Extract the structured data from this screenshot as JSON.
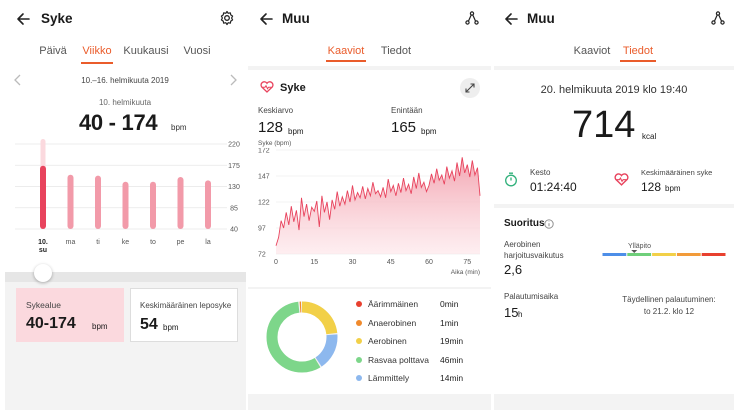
{
  "panel1": {
    "title": "Syke",
    "tabs": [
      "Päivä",
      "Viikko",
      "Kuukausi",
      "Vuosi"
    ],
    "active_tab": "Viikko",
    "date_range": "10.–16. helmikuuta 2019",
    "selected_date": "10. helmikuuta",
    "range_value": "40 - 174",
    "range_unit": "bpm",
    "days": [
      {
        "label": "10.\nsu",
        "low": 40,
        "high": 174,
        "selected": true
      },
      {
        "label": "ma",
        "low": 40,
        "high": 155
      },
      {
        "label": "ti",
        "low": 40,
        "high": 153
      },
      {
        "label": "ke",
        "low": 40,
        "high": 140
      },
      {
        "label": "to",
        "low": 40,
        "high": 140
      },
      {
        "label": "pe",
        "low": 40,
        "high": 150
      },
      {
        "label": "la",
        "low": 40,
        "high": 143
      }
    ],
    "y_ticks": [
      "220",
      "175",
      "130",
      "85",
      "40"
    ],
    "card_range_label": "Sykealue",
    "card_range_value": "40-174",
    "card_range_unit": "bpm",
    "card_rest_label": "Keskimääräinen leposyke",
    "card_rest_value": "54",
    "card_rest_unit": "bpm",
    "colors": {
      "accent": "#ea5c2b",
      "bar": "#f29aa9",
      "bar_selected": "#e8435d",
      "card_pink": "#fbd9de"
    }
  },
  "panel2": {
    "title": "Muu",
    "tabs": [
      "Kaaviot",
      "Tiedot"
    ],
    "active_tab": "Kaaviot",
    "section_title": "Syke",
    "avg_label": "Keskiarvo",
    "avg_value": "128",
    "max_label": "Enintään",
    "max_value": "165",
    "unit": "bpm",
    "chart_ylabel": "Syke (bpm)",
    "chart_xlabel": "Aika (min)",
    "donut_legend": [
      {
        "label": "Äärimmäinen",
        "value": "0min",
        "minutes": 0,
        "color": "#e8402f"
      },
      {
        "label": "Anaerobinen",
        "value": "1min",
        "minutes": 1,
        "color": "#f08a2c"
      },
      {
        "label": "Aerobinen",
        "value": "19min",
        "minutes": 19,
        "color": "#f2d048"
      },
      {
        "label": "Rasvaa polttava",
        "value": "46min",
        "minutes": 46,
        "color": "#7dd68a"
      },
      {
        "label": "Lämmittely",
        "value": "14min",
        "minutes": 14,
        "color": "#8db8ee"
      }
    ]
  },
  "chart_data": {
    "type": "area",
    "title": "Syke",
    "xlabel": "Aika (min)",
    "ylabel": "Syke (bpm)",
    "xlim": [
      0,
      80
    ],
    "ylim": [
      72,
      172
    ],
    "x_ticks": [
      0,
      15,
      30,
      45,
      60,
      75
    ],
    "y_ticks": [
      72,
      97,
      122,
      147,
      172
    ],
    "x": [
      0,
      1,
      2,
      3,
      4,
      5,
      6,
      7,
      8,
      9,
      10,
      11,
      12,
      13,
      14,
      15,
      16,
      17,
      18,
      19,
      20,
      21,
      22,
      23,
      24,
      25,
      26,
      27,
      28,
      29,
      30,
      31,
      32,
      33,
      34,
      35,
      36,
      37,
      38,
      39,
      40,
      41,
      42,
      43,
      44,
      45,
      46,
      47,
      48,
      49,
      50,
      51,
      52,
      53,
      54,
      55,
      56,
      57,
      58,
      59,
      60,
      61,
      62,
      63,
      64,
      65,
      66,
      67,
      68,
      69,
      70,
      71,
      72,
      73,
      74,
      75,
      76,
      77,
      78,
      79,
      80
    ],
    "values": [
      80,
      88,
      104,
      97,
      112,
      100,
      118,
      103,
      114,
      95,
      126,
      108,
      120,
      104,
      117,
      113,
      123,
      98,
      128,
      112,
      122,
      105,
      124,
      115,
      132,
      118,
      127,
      120,
      133,
      122,
      138,
      124,
      131,
      126,
      137,
      125,
      135,
      128,
      141,
      130,
      133,
      127,
      136,
      126,
      144,
      132,
      138,
      128,
      140,
      131,
      145,
      133,
      139,
      130,
      146,
      135,
      150,
      136,
      141,
      132,
      138,
      149,
      140,
      154,
      143,
      148,
      139,
      156,
      145,
      152,
      142,
      160,
      147,
      165,
      150,
      158,
      146,
      162,
      148,
      155,
      128
    ]
  },
  "panel3": {
    "title": "Muu",
    "tabs": [
      "Kaaviot",
      "Tiedot"
    ],
    "active_tab": "Tiedot",
    "datetime": "20. helmikuuta 2019 klo 19:40",
    "kcal_value": "714",
    "kcal_unit": "kcal",
    "duration_label": "Kesto",
    "duration_value": "01:24:40",
    "avg_hr_label": "Keskimääräinen syke",
    "avg_hr_value": "128",
    "avg_hr_unit": "bpm",
    "performance_title": "Suoritus",
    "aerobic_label": "Aerobinen harjoitusvaikutus",
    "aerobic_value": "2,6",
    "gauge_label": "Ylläpito",
    "gauge_fraction": 0.26,
    "gauge_colors": [
      "#4d8ee8",
      "#6fcf7a",
      "#f2d048",
      "#f29b3a",
      "#e8402f"
    ],
    "recovery_label": "Palautumisaika",
    "recovery_value": "15",
    "recovery_unit": "h",
    "full_recovery_label": "Täydellinen palautuminen:",
    "full_recovery_value": "to 21.2. klo 12"
  }
}
